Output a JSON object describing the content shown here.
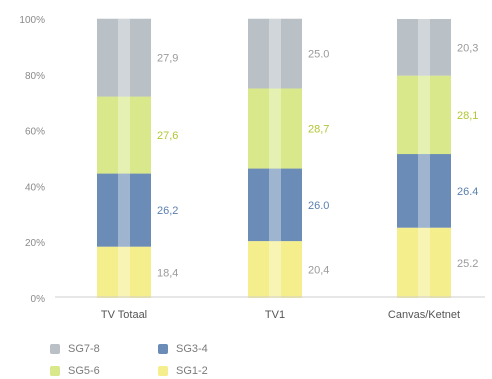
{
  "chart_data": {
    "type": "bar",
    "stacked": true,
    "normalized_percent": true,
    "categories": [
      "TV Totaal",
      "TV1",
      "Canvas/Ketnet"
    ],
    "series": [
      {
        "name": "SG1-2",
        "values": [
          18.4,
          20.4,
          25.2
        ],
        "color": "#f4ee8c",
        "label_color": "#9a9a9a"
      },
      {
        "name": "SG3-4",
        "values": [
          26.2,
          26.0,
          26.4
        ],
        "color": "#6a8cb6",
        "label_color": "#5b80b0"
      },
      {
        "name": "SG5-6",
        "values": [
          27.6,
          28.7,
          28.1
        ],
        "color": "#d8e88a",
        "label_color": "#b2c632"
      },
      {
        "name": "SG7-8",
        "values": [
          27.9,
          25.0,
          20.3
        ],
        "color": "#b9c0c6",
        "label_color": "#9a9a9a"
      }
    ],
    "labels": [
      [
        "18,4",
        "20,4",
        "25.2"
      ],
      [
        "26,2",
        "26.0",
        "26.4"
      ],
      [
        "27,6",
        "28,7",
        "28,1"
      ],
      [
        "27,9",
        "25.0",
        "20,3"
      ]
    ],
    "yticks": [
      "0%",
      "20%",
      "40%",
      "60%",
      "80%",
      "100%"
    ],
    "ylim": [
      0,
      100
    ],
    "legend_order": [
      "SG7-8",
      "SG3-4",
      "SG5-6",
      "SG1-2"
    ],
    "legend_placement": "bottom-left"
  }
}
